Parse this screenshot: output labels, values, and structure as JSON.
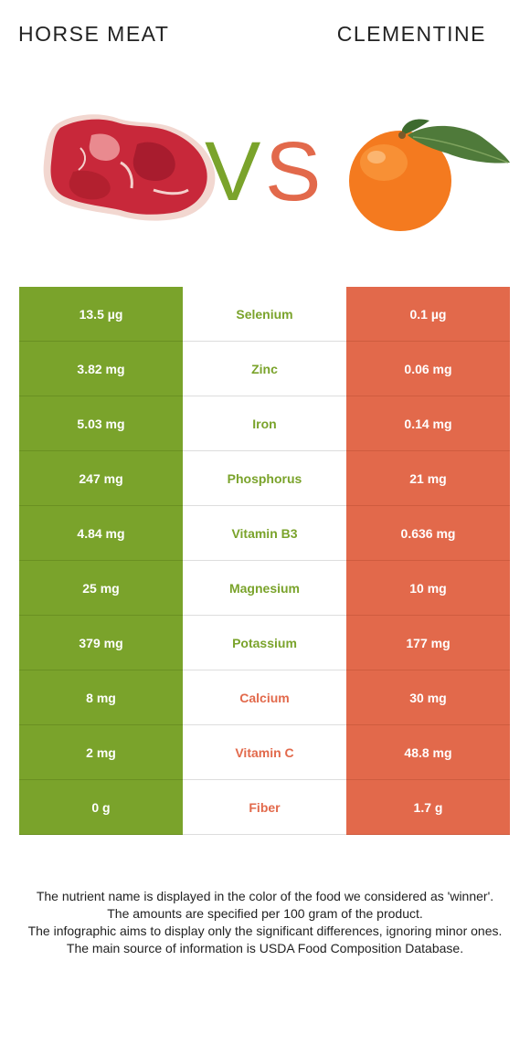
{
  "header": {
    "left_food": "HORSE MEAT",
    "right_food": "CLEMENTINE",
    "vs_v": "V",
    "vs_s": "S"
  },
  "colors": {
    "left_food": "#7aa32b",
    "right_food": "#e2694b"
  },
  "images": {
    "left": "raw-meat-steak",
    "right": "clementine-orange-with-leaf"
  },
  "nutrients": [
    {
      "name": "Selenium",
      "left": "13.5 µg",
      "right": "0.1 µg",
      "winner": "left"
    },
    {
      "name": "Zinc",
      "left": "3.82 mg",
      "right": "0.06 mg",
      "winner": "left"
    },
    {
      "name": "Iron",
      "left": "5.03 mg",
      "right": "0.14 mg",
      "winner": "left"
    },
    {
      "name": "Phosphorus",
      "left": "247 mg",
      "right": "21 mg",
      "winner": "left"
    },
    {
      "name": "Vitamin B3",
      "left": "4.84 mg",
      "right": "0.636 mg",
      "winner": "left"
    },
    {
      "name": "Magnesium",
      "left": "25 mg",
      "right": "10 mg",
      "winner": "left"
    },
    {
      "name": "Potassium",
      "left": "379 mg",
      "right": "177 mg",
      "winner": "left"
    },
    {
      "name": "Calcium",
      "left": "8 mg",
      "right": "30 mg",
      "winner": "right"
    },
    {
      "name": "Vitamin C",
      "left": "2 mg",
      "right": "48.8 mg",
      "winner": "right"
    },
    {
      "name": "Fiber",
      "left": "0 g",
      "right": "1.7 g",
      "winner": "right"
    }
  ],
  "footnote": [
    "The nutrient name is displayed in the color of the food we considered as 'winner'.",
    "The amounts are specified per 100 gram of the product.",
    "The infographic aims to display only the significant differences, ignoring minor ones.",
    "The main source of information is USDA Food Composition Database."
  ]
}
